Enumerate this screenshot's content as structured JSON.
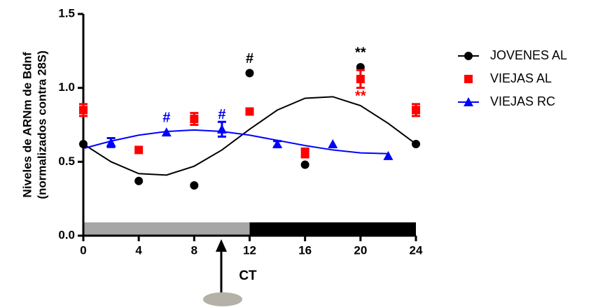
{
  "chart_data": {
    "type": "scatter",
    "y_label": [
      "Niveles de ARNm de Bdnf",
      "(normalizados contra 28S)"
    ],
    "x_annotation": "CT",
    "xlim": [
      0,
      24
    ],
    "ylim": [
      0,
      1.5
    ],
    "xticks": [
      0,
      4,
      8,
      12,
      16,
      20,
      24
    ],
    "yticks": [
      {
        "value": 0,
        "label": "0.0"
      },
      {
        "value": 0.5,
        "label": "0.5"
      },
      {
        "value": 1,
        "label": "1.0"
      },
      {
        "value": 1.5,
        "label": "1.5"
      }
    ],
    "light_dark": [
      {
        "start": 0,
        "end": 12,
        "color": "#a6a6a6"
      },
      {
        "start": 12,
        "end": 24,
        "color": "#000000"
      }
    ],
    "series": [
      {
        "name": "JOVENES AL",
        "color": "#000000",
        "marker": "circle",
        "x": [
          0,
          4,
          8,
          12,
          16,
          20,
          24
        ],
        "values": [
          0.62,
          0.37,
          0.34,
          1.1,
          0.48,
          1.14,
          0.62
        ],
        "fit": {
          "x": [
            0,
            2,
            4,
            6,
            8,
            10,
            12,
            14,
            16,
            18,
            20,
            22,
            24
          ],
          "values": [
            0.62,
            0.5,
            0.42,
            0.41,
            0.47,
            0.58,
            0.72,
            0.85,
            0.93,
            0.94,
            0.88,
            0.76,
            0.62
          ]
        }
      },
      {
        "name": "VIEJAS AL",
        "color": "#ff0000",
        "marker": "square",
        "x": [
          0,
          4,
          8,
          12,
          16,
          20,
          24
        ],
        "values": [
          0.85,
          0.58,
          0.79,
          0.84,
          0.56,
          1.06,
          0.85
        ],
        "errors": [
          0.04,
          0,
          0.04,
          0,
          0.03,
          0.06,
          0.04
        ]
      },
      {
        "name": "VIEJAS RC",
        "color": "#0000ff",
        "marker": "triangle",
        "x": [
          2,
          6,
          10,
          14,
          18,
          22
        ],
        "values": [
          0.63,
          0.7,
          0.72,
          0.62,
          0.62,
          0.54
        ],
        "errors": [
          0.03,
          0,
          0.05,
          0.02,
          0,
          0
        ],
        "fit": {
          "x": [
            0,
            2,
            4,
            6,
            8,
            10,
            12,
            14,
            16,
            18,
            20,
            22
          ],
          "values": [
            0.59,
            0.64,
            0.68,
            0.705,
            0.715,
            0.705,
            0.68,
            0.645,
            0.61,
            0.58,
            0.56,
            0.555
          ]
        }
      }
    ],
    "annotations": [
      {
        "text": "#",
        "series": 0,
        "point": 3,
        "position": "above"
      },
      {
        "text": "**",
        "series": 0,
        "point": 5,
        "position": "above"
      },
      {
        "text": "#",
        "series": 2,
        "point": 1,
        "position": "above"
      },
      {
        "text": "#",
        "series": 2,
        "point": 2,
        "position": "above"
      },
      {
        "text": "**",
        "series": 1,
        "point": 5,
        "position": "below"
      }
    ]
  }
}
